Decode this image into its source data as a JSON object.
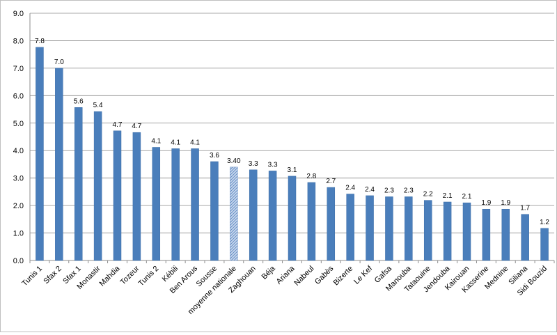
{
  "chart_data": {
    "type": "bar",
    "title": "",
    "xlabel": "",
    "ylabel": "",
    "ylim": [
      0,
      9
    ],
    "yticks": [
      "0.0",
      "1.0",
      "2.0",
      "3.0",
      "4.0",
      "5.0",
      "6.0",
      "7.0",
      "8.0",
      "9.0"
    ],
    "grid": true,
    "legend": "none",
    "bar_color": "#4a7ebb",
    "highlight_color": "#a6bddb",
    "highlight_category": "moyenne nationale",
    "categories": [
      "Tunis 1",
      "Sfax 2",
      "Sfax 1",
      "Monastir",
      "Mahdia",
      "Tozeur",
      "Tunis 2",
      "Kébili",
      "Ben Arous",
      "Sousse",
      "moyenne nationale",
      "Zaghouan",
      "Béja",
      "Ariana",
      "Nabeul",
      "Gabès",
      "Bizerte",
      "Le Kef",
      "Gafsa",
      "Manouba",
      "Tataouine",
      "Jendouba",
      "Kairouan",
      "Kasserine",
      "Mednine",
      "Siliana",
      "Sidi Bouzid"
    ],
    "values": [
      7.76,
      7.0,
      5.57,
      5.42,
      4.72,
      4.66,
      4.12,
      4.07,
      4.07,
      3.6,
      3.4,
      3.3,
      3.26,
      3.07,
      2.84,
      2.66,
      2.42,
      2.36,
      2.32,
      2.32,
      2.19,
      2.13,
      2.1,
      1.87,
      1.87,
      1.68,
      1.17
    ],
    "data_labels": [
      "7.8",
      "7.0",
      "5.6",
      "5.4",
      "4.7",
      "4.7",
      "4.1",
      "4.1",
      "4.1",
      "3.6",
      "3.40",
      "3.3",
      "3.3",
      "3.1",
      "2.8",
      "2.7",
      "2.4",
      "2.4",
      "2.3",
      "2.3",
      "2.2",
      "2.1",
      "2.1",
      "1.9",
      "1.9",
      "1.7",
      "1.2"
    ]
  }
}
